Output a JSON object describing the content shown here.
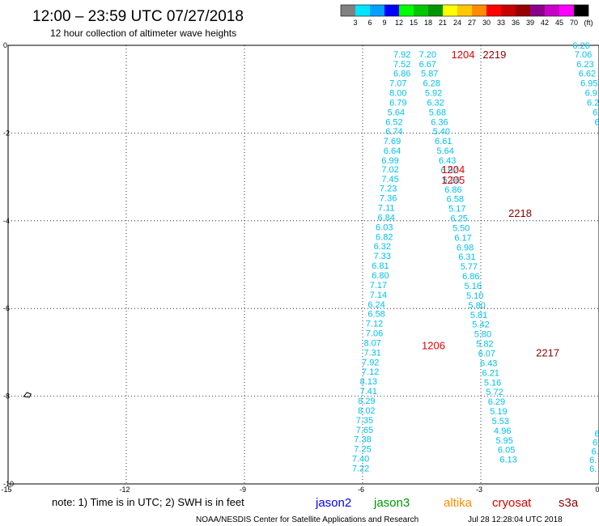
{
  "header": {
    "title": "12:00 – 23:59 UTC 07/27/2018",
    "subtitle": "12 hour collection of altimeter wave heights"
  },
  "color_scale": {
    "colors": [
      "#808080",
      "#00e5ff",
      "#00a0ff",
      "#0000ff",
      "#00ff00",
      "#00c800",
      "#009600",
      "#ffff00",
      "#ffc800",
      "#ff8c00",
      "#ff0000",
      "#c80000",
      "#960000",
      "#8b008b",
      "#c800c8",
      "#ff00ff",
      "#000000"
    ],
    "labels": [
      "3",
      "6",
      "9",
      "12",
      "15",
      "18",
      "21",
      "24",
      "27",
      "30",
      "33",
      "36",
      "39",
      "42",
      "45",
      "70",
      "(ft)"
    ]
  },
  "footer": {
    "note": "note: 1) Time is in UTC; 2) SWH is in feet",
    "legend": [
      {
        "name": "jason2",
        "color": "#0000ff"
      },
      {
        "name": "jason3",
        "color": "#009600"
      },
      {
        "name": "altika",
        "color": "#ff8c00"
      },
      {
        "name": "cryosat",
        "color": "#e00000"
      },
      {
        "name": "s3a",
        "color": "#8b0000"
      }
    ],
    "credit": "NOAA/NESDIS Center for Satellite Applications and Research",
    "timestamp": "Jul 28 12:28:04 UTC 2018"
  },
  "chart_data": {
    "type": "scatter",
    "xlim": [
      -15,
      0
    ],
    "ylim": [
      -10,
      0
    ],
    "x_ticks": [
      "-15",
      "-12",
      "-9",
      "-6",
      "-3",
      "0"
    ],
    "y_ticks": [
      "0",
      "-2",
      "-4",
      "-6",
      "-8",
      "-10"
    ],
    "grid": true,
    "land_marker": {
      "x": -14.5,
      "y": -7.97
    },
    "track_labels": [
      {
        "text": "1204",
        "x": -3.75,
        "y": -0.2,
        "color": "#e00000"
      },
      {
        "text": "2219",
        "x": -2.95,
        "y": -0.2,
        "color": "#8b0000"
      },
      {
        "text": "1204",
        "x": -4.0,
        "y": -2.82,
        "color": "#e00000"
      },
      {
        "text": "1205",
        "x": -4.0,
        "y": -3.06,
        "color": "#e00000"
      },
      {
        "text": "2218",
        "x": -2.3,
        "y": -3.82,
        "color": "#8b0000"
      },
      {
        "text": "1206",
        "x": -4.5,
        "y": -6.84,
        "color": "#e00000"
      },
      {
        "text": "2217",
        "x": -1.6,
        "y": -7.0,
        "color": "#8b0000"
      }
    ],
    "series": [
      {
        "color": "#00bfef",
        "points": [
          {
            "x": -5.0,
            "y": -0.2,
            "v": "7.92"
          },
          {
            "x": -5.0,
            "y": -0.42,
            "v": "7.52"
          },
          {
            "x": -5.0,
            "y": -0.64,
            "v": "6.86"
          },
          {
            "x": -5.1,
            "y": -0.86,
            "v": "7.07"
          },
          {
            "x": -5.1,
            "y": -1.08,
            "v": "8.00"
          },
          {
            "x": -5.1,
            "y": -1.3,
            "v": "6.79"
          },
          {
            "x": -5.15,
            "y": -1.52,
            "v": "5.64"
          },
          {
            "x": -5.2,
            "y": -1.74,
            "v": "6.52"
          },
          {
            "x": -5.2,
            "y": -1.96,
            "v": "6.74"
          },
          {
            "x": -5.25,
            "y": -2.18,
            "v": "7.69"
          },
          {
            "x": -5.25,
            "y": -2.4,
            "v": "6.64"
          },
          {
            "x": -5.3,
            "y": -2.62,
            "v": "6.99"
          },
          {
            "x": -5.3,
            "y": -2.82,
            "v": "7.02"
          },
          {
            "x": -5.3,
            "y": -3.04,
            "v": "7.45"
          },
          {
            "x": -5.35,
            "y": -3.26,
            "v": "7.23"
          },
          {
            "x": -5.35,
            "y": -3.48,
            "v": "7.36"
          },
          {
            "x": -5.4,
            "y": -3.7,
            "v": "7.11"
          },
          {
            "x": -5.4,
            "y": -3.92,
            "v": "6.84"
          },
          {
            "x": -5.45,
            "y": -4.14,
            "v": "6.03"
          },
          {
            "x": -5.45,
            "y": -4.36,
            "v": "6.82"
          },
          {
            "x": -5.5,
            "y": -4.58,
            "v": "6.32"
          },
          {
            "x": -5.5,
            "y": -4.8,
            "v": "7.33"
          },
          {
            "x": -5.55,
            "y": -5.02,
            "v": "6.81"
          },
          {
            "x": -5.55,
            "y": -5.24,
            "v": "6.80"
          },
          {
            "x": -5.6,
            "y": -5.46,
            "v": "7.17"
          },
          {
            "x": -5.6,
            "y": -5.68,
            "v": "7.14"
          },
          {
            "x": -5.65,
            "y": -5.9,
            "v": "6.24"
          },
          {
            "x": -5.65,
            "y": -6.12,
            "v": "6.58"
          },
          {
            "x": -5.7,
            "y": -6.34,
            "v": "7.12"
          },
          {
            "x": -5.7,
            "y": -6.56,
            "v": "7.06"
          },
          {
            "x": -5.75,
            "y": -6.78,
            "v": "8.07"
          },
          {
            "x": -5.75,
            "y": -7.0,
            "v": "7.31"
          },
          {
            "x": -5.8,
            "y": -7.22,
            "v": "7.92"
          },
          {
            "x": -5.8,
            "y": -7.44,
            "v": "7.12"
          },
          {
            "x": -5.85,
            "y": -7.66,
            "v": "8.13"
          },
          {
            "x": -5.85,
            "y": -7.88,
            "v": "7.41"
          },
          {
            "x": -5.9,
            "y": -8.1,
            "v": "8.29"
          },
          {
            "x": -5.9,
            "y": -8.32,
            "v": "8.02"
          },
          {
            "x": -5.95,
            "y": -8.54,
            "v": "7.35"
          },
          {
            "x": -5.95,
            "y": -8.76,
            "v": "7.65"
          },
          {
            "x": -6.0,
            "y": -8.98,
            "v": "7.38"
          },
          {
            "x": -6.0,
            "y": -9.2,
            "v": "7.25"
          },
          {
            "x": -6.05,
            "y": -9.42,
            "v": "7.40"
          },
          {
            "x": -6.05,
            "y": -9.64,
            "v": "7.22"
          }
        ]
      },
      {
        "color": "#00bfef",
        "points": [
          {
            "x": -4.35,
            "y": -0.2,
            "v": "7.20"
          },
          {
            "x": -4.35,
            "y": -0.42,
            "v": "6.67"
          },
          {
            "x": -4.3,
            "y": -0.64,
            "v": "5.87"
          },
          {
            "x": -4.25,
            "y": -0.86,
            "v": "6.28"
          },
          {
            "x": -4.2,
            "y": -1.08,
            "v": "5.92"
          },
          {
            "x": -4.15,
            "y": -1.3,
            "v": "6.32"
          },
          {
            "x": -4.1,
            "y": -1.52,
            "v": "5.68"
          },
          {
            "x": -4.05,
            "y": -1.74,
            "v": "6.36"
          },
          {
            "x": -4.0,
            "y": -1.96,
            "v": "5.40"
          },
          {
            "x": -3.95,
            "y": -2.18,
            "v": "6.61"
          },
          {
            "x": -3.9,
            "y": -2.4,
            "v": "5.64"
          },
          {
            "x": -3.85,
            "y": -2.62,
            "v": "6.43"
          },
          {
            "x": -3.8,
            "y": -2.84,
            "v": "6.92"
          },
          {
            "x": -3.75,
            "y": -3.06,
            "v": "5.26"
          },
          {
            "x": -3.7,
            "y": -3.28,
            "v": "6.86"
          },
          {
            "x": -3.65,
            "y": -3.5,
            "v": "6.58"
          },
          {
            "x": -3.6,
            "y": -3.72,
            "v": "5.17"
          },
          {
            "x": -3.55,
            "y": -3.94,
            "v": "6.25"
          },
          {
            "x": -3.5,
            "y": -4.16,
            "v": "5.50"
          },
          {
            "x": -3.45,
            "y": -4.38,
            "v": "6.17"
          },
          {
            "x": -3.4,
            "y": -4.6,
            "v": "6.98"
          },
          {
            "x": -3.35,
            "y": -4.82,
            "v": "6.31"
          },
          {
            "x": -3.3,
            "y": -5.04,
            "v": "5.77"
          },
          {
            "x": -3.25,
            "y": -5.26,
            "v": "6.86"
          },
          {
            "x": -3.2,
            "y": -5.48,
            "v": "5.16"
          },
          {
            "x": -3.15,
            "y": -5.7,
            "v": "5.10"
          },
          {
            "x": -3.1,
            "y": -5.92,
            "v": "5.80"
          },
          {
            "x": -3.05,
            "y": -6.14,
            "v": "5.81"
          },
          {
            "x": -3.0,
            "y": -6.36,
            "v": "5.42"
          },
          {
            "x": -2.95,
            "y": -6.58,
            "v": "5.80"
          },
          {
            "x": -2.9,
            "y": -6.8,
            "v": "5.82"
          },
          {
            "x": -2.85,
            "y": -7.02,
            "v": "6.07"
          },
          {
            "x": -2.8,
            "y": -7.24,
            "v": "6.43"
          },
          {
            "x": -2.75,
            "y": -7.46,
            "v": "6.21"
          },
          {
            "x": -2.7,
            "y": -7.68,
            "v": "5.16"
          },
          {
            "x": -2.65,
            "y": -7.9,
            "v": "5.72"
          },
          {
            "x": -2.6,
            "y": -8.12,
            "v": "6.29"
          },
          {
            "x": -2.55,
            "y": -8.34,
            "v": "5.19"
          },
          {
            "x": -2.5,
            "y": -8.56,
            "v": "5.53"
          },
          {
            "x": -2.45,
            "y": -8.78,
            "v": "4.96"
          },
          {
            "x": -2.4,
            "y": -9.0,
            "v": "5.95"
          },
          {
            "x": -2.35,
            "y": -9.22,
            "v": "6.05"
          },
          {
            "x": -2.3,
            "y": -9.44,
            "v": "6.13"
          }
        ]
      },
      {
        "color": "#00bfef",
        "points": [
          {
            "x": -0.45,
            "y": 0.0,
            "v": "6.26"
          },
          {
            "x": -0.4,
            "y": -0.2,
            "v": "7.06"
          },
          {
            "x": -0.35,
            "y": -0.42,
            "v": "6.23"
          },
          {
            "x": -0.3,
            "y": -0.64,
            "v": "6.62"
          },
          {
            "x": -0.25,
            "y": -0.86,
            "v": "6.95"
          },
          {
            "x": -0.2,
            "y": -1.08,
            "v": "6.9"
          },
          {
            "x": -0.15,
            "y": -1.3,
            "v": "6.2"
          },
          {
            "x": -0.1,
            "y": -1.52,
            "v": "6"
          },
          {
            "x": -0.05,
            "y": -1.74,
            "v": "6"
          },
          {
            "x": -0.05,
            "y": -8.85,
            "v": "6"
          },
          {
            "x": -0.1,
            "y": -9.05,
            "v": "6"
          },
          {
            "x": -0.1,
            "y": -9.25,
            "v": "6."
          },
          {
            "x": -0.15,
            "y": -9.45,
            "v": "6."
          },
          {
            "x": -0.15,
            "y": -9.65,
            "v": "6."
          }
        ]
      }
    ]
  }
}
